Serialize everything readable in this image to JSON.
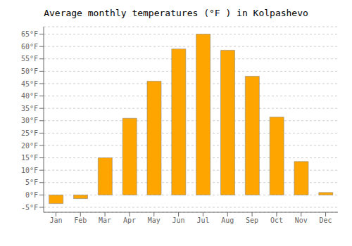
{
  "chart_data": {
    "type": "bar",
    "title": "Average monthly temperatures (°F ) in Kolpashevo",
    "categories": [
      "Jan",
      "Feb",
      "Mar",
      "Apr",
      "May",
      "Jun",
      "Jul",
      "Aug",
      "Sep",
      "Oct",
      "Nov",
      "Dec"
    ],
    "values": [
      -3.5,
      -1.5,
      15.0,
      31.0,
      46.0,
      59.0,
      65.0,
      58.5,
      48.0,
      31.5,
      13.5,
      1.0
    ],
    "color": "#FFA500",
    "ylim": [
      -7,
      68
    ],
    "yticks": [
      {
        "value": -5,
        "label": "-5°F"
      },
      {
        "value": 0,
        "label": "0°F"
      },
      {
        "value": 5,
        "label": "5°F"
      },
      {
        "value": 10,
        "label": "10°F"
      },
      {
        "value": 15,
        "label": "15°F"
      },
      {
        "value": 20,
        "label": "20°F"
      },
      {
        "value": 25,
        "label": "25°F"
      },
      {
        "value": 30,
        "label": "30°F"
      },
      {
        "value": 35,
        "label": "35°F"
      },
      {
        "value": 40,
        "label": "40°F"
      },
      {
        "value": 45,
        "label": "45°F"
      },
      {
        "value": 50,
        "label": "50°F"
      },
      {
        "value": 55,
        "label": "55°F"
      },
      {
        "value": 60,
        "label": "60°F"
      },
      {
        "value": 65,
        "label": "65°F"
      }
    ],
    "grid": true
  }
}
